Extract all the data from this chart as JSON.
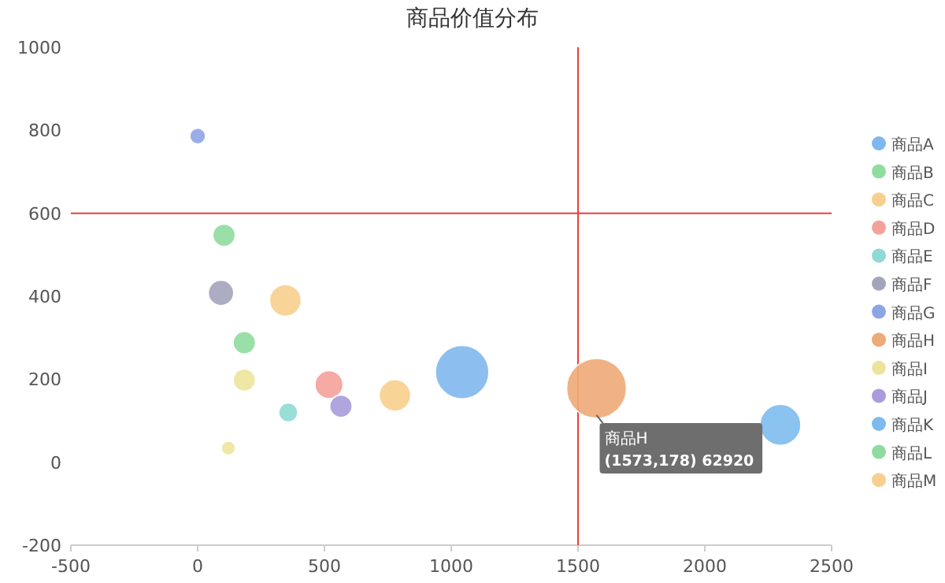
{
  "chart_data": {
    "type": "bubble",
    "title": "商品价值分布",
    "xlim": [
      -500,
      2500
    ],
    "xticks": [
      -500,
      0,
      500,
      1000,
      1500,
      2000,
      2500
    ],
    "ylim": [
      -200,
      1000
    ],
    "yticks": [
      -200,
      0,
      200,
      400,
      600,
      800,
      1000
    ],
    "grid": false,
    "legend": "right",
    "marker": "circle",
    "series": [
      {
        "name": "商品A",
        "color": "#7fb8ee",
        "x": [
          1043
        ],
        "values": [
          217
        ],
        "sizes": [
          0.8
        ]
      },
      {
        "name": "商品B",
        "color": "#8fdc9f",
        "x": [
          104
        ],
        "values": [
          547
        ],
        "sizes": [
          0.14
        ]
      },
      {
        "name": "商品C",
        "color": "#f7cf8e",
        "x": [
          346
        ],
        "values": [
          390
        ],
        "sizes": [
          0.28
        ]
      },
      {
        "name": "商品D",
        "color": "#f4a19a",
        "x": [
          518
        ],
        "values": [
          187
        ],
        "sizes": [
          0.22
        ]
      },
      {
        "name": "商品E",
        "color": "#8fdad4",
        "x": [
          357
        ],
        "values": [
          120
        ],
        "sizes": [
          0.1
        ]
      },
      {
        "name": "商品F",
        "color": "#a3a3bb",
        "x": [
          92
        ],
        "values": [
          408
        ],
        "sizes": [
          0.18
        ]
      },
      {
        "name": "商品G",
        "color": "#8ea5e5",
        "x": [
          0
        ],
        "values": [
          786
        ],
        "sizes": [
          0.07
        ]
      },
      {
        "name": "商品H",
        "color": "#eeaa77",
        "x": [
          1573
        ],
        "values": [
          178
        ],
        "sizes": [
          1
        ]
      },
      {
        "name": "商品I",
        "color": "#ece49c",
        "x": [
          184,
          121
        ],
        "values": [
          198,
          34
        ],
        "sizes": [
          0.14,
          0.055
        ]
      },
      {
        "name": "商品J",
        "color": "#a99bdc",
        "x": [
          565
        ],
        "values": [
          135
        ],
        "sizes": [
          0.14
        ]
      },
      {
        "name": "商品K",
        "color": "#7dbbee",
        "x": [
          2298
        ],
        "values": [
          90
        ],
        "sizes": [
          0.47
        ]
      },
      {
        "name": "商品L",
        "color": "#8fdc9f",
        "x": [
          184
        ],
        "values": [
          288
        ],
        "sizes": [
          0.14
        ]
      },
      {
        "name": "商品M",
        "color": "#f7cf8e",
        "x": [
          778
        ],
        "values": [
          161
        ],
        "sizes": [
          0.28
        ]
      }
    ],
    "ref_lines": [
      {
        "axis": "x",
        "value": 1500,
        "color": "#f03c3c"
      },
      {
        "axis": "y",
        "value": 600,
        "color": "#f03c3c"
      }
    ],
    "annotations": [
      {
        "text": "商品H (1573,178) 62920",
        "x": 1573,
        "y": 178
      }
    ]
  }
}
